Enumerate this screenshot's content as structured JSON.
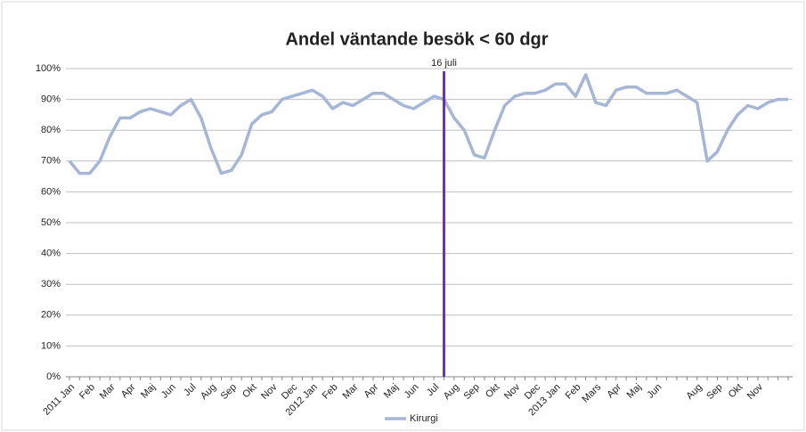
{
  "chart_data": {
    "type": "line",
    "title": "Andel väntande besök < 60 dgr",
    "categories": [
      "2011 Jan",
      null,
      "Feb",
      null,
      "Mar",
      null,
      "Apr",
      null,
      "Maj",
      null,
      "Jun",
      null,
      "Jul",
      null,
      "Aug",
      null,
      "Sep",
      null,
      "Okt",
      null,
      "Nov",
      null,
      "Dec",
      null,
      "2012 Jan",
      null,
      "Feb",
      null,
      "Mar",
      null,
      "Apr",
      null,
      "Maj",
      null,
      "Jun",
      null,
      "Jul",
      null,
      "Aug",
      null,
      "Sep",
      null,
      "Okt",
      null,
      "Nov",
      null,
      "Dec",
      null,
      "2013 Jan",
      null,
      "Feb",
      null,
      "Mars",
      null,
      "Apr",
      null,
      "Maj",
      null,
      "Jun",
      null,
      null,
      null,
      "Aug",
      null,
      "Sep",
      null,
      "Okt",
      null,
      "Nov",
      null,
      null,
      null
    ],
    "series": [
      {
        "name": "Kirurgi",
        "color": "#a6b6d6",
        "values": [
          70,
          66,
          66,
          70,
          78,
          84,
          84,
          86,
          87,
          86,
          85,
          88,
          90,
          84,
          74,
          66,
          67,
          72,
          82,
          85,
          86,
          90,
          91,
          92,
          93,
          91,
          87,
          89,
          88,
          90,
          92,
          92,
          90,
          88,
          87,
          89,
          91,
          90,
          84,
          80,
          72,
          71,
          80,
          88,
          91,
          92,
          92,
          93,
          95,
          95,
          91,
          98,
          89,
          88,
          93,
          94,
          94,
          92,
          92,
          92,
          93,
          91,
          89,
          70,
          73,
          80,
          85,
          88,
          87,
          89,
          90,
          90
        ]
      }
    ],
    "ylim": [
      0,
      100
    ],
    "yticks": [
      {
        "value": 0,
        "label": "0%"
      },
      {
        "value": 10,
        "label": "10%"
      },
      {
        "value": 20,
        "label": "20%"
      },
      {
        "value": 30,
        "label": "30%"
      },
      {
        "value": 40,
        "label": "40%"
      },
      {
        "value": 50,
        "label": "50%"
      },
      {
        "value": 60,
        "label": "60%"
      },
      {
        "value": 70,
        "label": "70%"
      },
      {
        "value": 80,
        "label": "80%"
      },
      {
        "value": 90,
        "label": "90%"
      },
      {
        "value": 100,
        "label": "100%"
      }
    ],
    "grid": true,
    "legend": "bottom",
    "annotations": [
      {
        "text": "16 juli",
        "x": 37,
        "color": "#7030a0"
      }
    ]
  }
}
